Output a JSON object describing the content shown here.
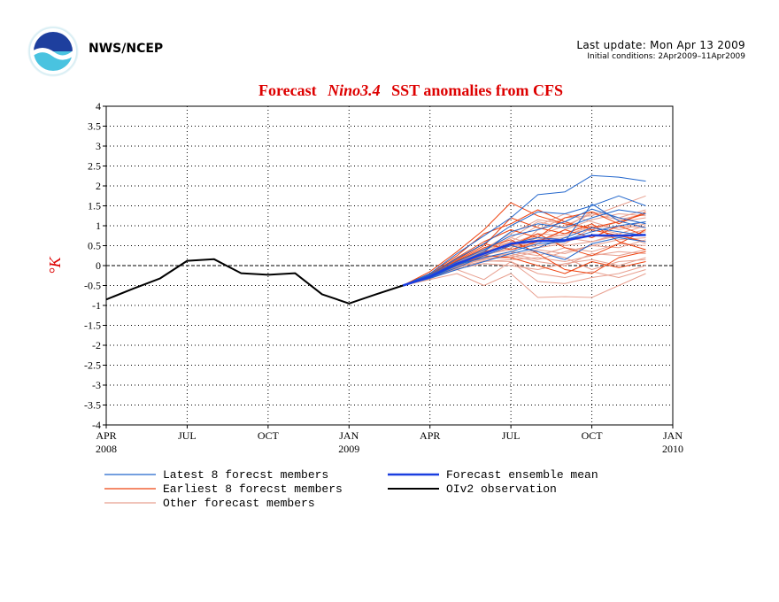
{
  "header": {
    "org": "NWS/NCEP",
    "last_update": "Last update: Mon Apr 13 2009",
    "initial_conditions": "Initial conditions: 2Apr2009–11Apr2009"
  },
  "colors": {
    "title": "#dd0000",
    "latest": "#2266cc",
    "earliest": "#ee4411",
    "other": "#e8a090",
    "mean": "#1a3ee0",
    "observation": "#000000"
  },
  "chart_data": {
    "type": "line",
    "title_prefix": "Forecast",
    "title_italic": "Nino3.4",
    "title_suffix": "SST anomalies from CFS",
    "ylabel": "°K",
    "ylim": [
      -4,
      4
    ],
    "yticks": [
      4,
      3.5,
      3,
      2.5,
      2,
      1.5,
      1,
      0.5,
      0,
      -0.5,
      -1,
      -1.5,
      -2,
      -2.5,
      -3,
      -3.5,
      -4
    ],
    "ytick_labels": [
      "4",
      "3.5",
      "3",
      "2.5",
      "2",
      "1.5",
      "1",
      "0.5",
      "0",
      "-0.5",
      "-1",
      "-1.5",
      "-2",
      "-2.5",
      "-3",
      "-3.5",
      "-4"
    ],
    "xlim": [
      "2008-04",
      "2010-01"
    ],
    "xticks": [
      {
        "x": "2008-04",
        "label": "APR",
        "year": "2008"
      },
      {
        "x": "2008-07",
        "label": "JUL",
        "year": ""
      },
      {
        "x": "2008-10",
        "label": "OCT",
        "year": ""
      },
      {
        "x": "2009-01",
        "label": "JAN",
        "year": "2009"
      },
      {
        "x": "2009-04",
        "label": "APR",
        "year": ""
      },
      {
        "x": "2009-07",
        "label": "JUL",
        "year": ""
      },
      {
        "x": "2009-10",
        "label": "OCT",
        "year": ""
      },
      {
        "x": "2010-01",
        "label": "JAN",
        "year": "2010"
      }
    ],
    "grid": true,
    "legend": [
      {
        "label": "Latest 8 forecst members",
        "key": "latest"
      },
      {
        "label": "Forecast ensemble mean",
        "key": "mean"
      },
      {
        "label": "Earliest 8 forecst members",
        "key": "earliest"
      },
      {
        "label": "OIv2 observation",
        "key": "observation"
      },
      {
        "label": "Other forecast members",
        "key": "other"
      }
    ],
    "observation": {
      "name": "OIv2 observation",
      "x": [
        "2008-04",
        "2008-05",
        "2008-06",
        "2008-07",
        "2008-08",
        "2008-09",
        "2008-10",
        "2008-11",
        "2008-12",
        "2009-01",
        "2009-02",
        "2009-03"
      ],
      "y": [
        -0.85,
        -0.58,
        -0.32,
        0.12,
        0.16,
        -0.19,
        -0.23,
        -0.19,
        -0.72,
        -0.95,
        -0.72,
        -0.5
      ]
    },
    "forecast_x": [
      "2009-03",
      "2009-04",
      "2009-05",
      "2009-06",
      "2009-07",
      "2009-08",
      "2009-09",
      "2009-10",
      "2009-11",
      "2009-12"
    ],
    "ensemble_mean": {
      "name": "Forecast ensemble mean",
      "y": [
        -0.5,
        -0.28,
        0.05,
        0.3,
        0.55,
        0.62,
        0.63,
        0.76,
        0.75,
        0.77
      ]
    },
    "latest_members": [
      [
        -0.5,
        -0.2,
        0.3,
        0.75,
        1.2,
        1.78,
        1.85,
        2.26,
        2.22,
        2.12
      ],
      [
        -0.5,
        -0.23,
        0.18,
        0.55,
        1.0,
        1.35,
        1.3,
        1.5,
        1.75,
        1.5
      ],
      [
        -0.5,
        -0.25,
        0.1,
        0.4,
        0.75,
        0.9,
        1.1,
        1.42,
        1.2,
        1.05
      ],
      [
        -0.5,
        -0.3,
        0.0,
        0.3,
        0.55,
        0.7,
        0.65,
        0.85,
        1.0,
        1.1
      ],
      [
        -0.5,
        -0.28,
        0.02,
        0.2,
        0.35,
        0.55,
        0.6,
        1.55,
        1.12,
        0.95
      ],
      [
        -0.5,
        -0.3,
        -0.05,
        0.25,
        0.5,
        0.35,
        0.15,
        0.55,
        0.7,
        0.6
      ],
      [
        -0.5,
        -0.32,
        -0.1,
        0.1,
        0.3,
        0.45,
        0.7,
        0.95,
        0.85,
        0.75
      ],
      [
        -0.5,
        -0.27,
        0.05,
        0.35,
        0.85,
        1.05,
        0.95,
        1.2,
        1.4,
        1.3
      ]
    ],
    "earliest_members": [
      [
        -0.5,
        -0.15,
        0.35,
        0.9,
        1.58,
        1.25,
        1.05,
        0.95,
        1.1,
        1.3
      ],
      [
        -0.5,
        -0.2,
        0.25,
        0.8,
        1.05,
        1.4,
        1.1,
        0.9,
        0.75,
        0.6
      ],
      [
        -0.5,
        -0.22,
        0.2,
        0.6,
        0.9,
        0.7,
        1.2,
        1.35,
        1.05,
        1.35
      ],
      [
        -0.5,
        -0.25,
        0.1,
        0.45,
        0.65,
        0.3,
        -0.1,
        -0.2,
        0.2,
        0.35
      ],
      [
        -0.5,
        -0.28,
        0.05,
        0.35,
        0.5,
        0.8,
        0.45,
        0.25,
        0.55,
        0.9
      ],
      [
        -0.5,
        -0.3,
        0.0,
        0.25,
        0.2,
        0.0,
        -0.2,
        0.1,
        -0.05,
        0.1
      ],
      [
        -0.5,
        -0.26,
        0.12,
        0.5,
        1.2,
        0.95,
        0.8,
        1.05,
        0.6,
        0.4
      ],
      [
        -0.5,
        -0.24,
        0.15,
        0.55,
        0.4,
        0.6,
        0.9,
        0.7,
        1.0,
        0.75
      ]
    ],
    "other_members": [
      [
        -0.5,
        -0.35,
        -0.2,
        -0.5,
        -0.2,
        -0.8,
        -0.78,
        -0.8,
        -0.5,
        -0.2
      ],
      [
        -0.5,
        -0.32,
        -0.1,
        -0.35,
        0.1,
        -0.4,
        -0.45,
        -0.3,
        -0.2,
        0.0
      ],
      [
        -0.5,
        -0.3,
        -0.05,
        0.2,
        0.3,
        0.9,
        1.2,
        1.25,
        1.5,
        1.75
      ],
      [
        -0.5,
        -0.28,
        0.05,
        0.3,
        0.7,
        1.1,
        0.95,
        1.35,
        1.2,
        1.4
      ],
      [
        -0.5,
        -0.27,
        0.1,
        0.35,
        0.5,
        0.6,
        0.8,
        0.9,
        1.1,
        1.2
      ],
      [
        -0.5,
        -0.3,
        0.0,
        0.15,
        0.25,
        0.4,
        0.3,
        0.5,
        0.45,
        0.65
      ],
      [
        -0.5,
        -0.31,
        -0.02,
        0.1,
        0.15,
        0.2,
        0.1,
        0.25,
        0.35,
        0.3
      ],
      [
        -0.5,
        -0.29,
        0.03,
        0.25,
        0.45,
        0.7,
        0.5,
        0.6,
        0.8,
        1.0
      ],
      [
        -0.5,
        -0.26,
        0.08,
        0.4,
        0.6,
        1.0,
        1.3,
        1.1,
        0.9,
        1.05
      ],
      [
        -0.5,
        -0.33,
        -0.08,
        0.05,
        0.0,
        -0.1,
        0.05,
        0.15,
        0.0,
        0.2
      ],
      [
        -0.5,
        -0.3,
        -0.03,
        0.2,
        0.35,
        0.25,
        0.45,
        0.35,
        0.55,
        0.5
      ],
      [
        -0.5,
        -0.28,
        0.06,
        0.3,
        0.55,
        0.8,
        0.75,
        1.0,
        0.95,
        1.1
      ],
      [
        -0.5,
        -0.27,
        0.09,
        0.38,
        0.7,
        0.5,
        0.6,
        0.75,
        0.7,
        0.85
      ],
      [
        -0.5,
        -0.31,
        -0.04,
        0.18,
        0.2,
        0.35,
        0.2,
        -0.1,
        0.1,
        0.15
      ],
      [
        -0.5,
        -0.29,
        0.02,
        0.28,
        0.4,
        0.55,
        0.9,
        1.15,
        1.3,
        1.25
      ],
      [
        -0.5,
        -0.3,
        0.01,
        0.22,
        0.3,
        0.15,
        0.35,
        0.5,
        0.65,
        0.7
      ],
      [
        -0.5,
        -0.26,
        0.1,
        0.42,
        0.8,
        1.15,
        1.05,
        0.85,
        1.0,
        0.95
      ],
      [
        -0.5,
        -0.32,
        -0.06,
        0.12,
        0.1,
        -0.2,
        -0.3,
        -0.15,
        -0.3,
        -0.1
      ],
      [
        -0.5,
        -0.28,
        0.04,
        0.32,
        0.6,
        0.45,
        0.55,
        0.95,
        0.8,
        0.55
      ],
      [
        -0.5,
        -0.29,
        0.0,
        0.26,
        0.45,
        0.65,
        0.7,
        0.6,
        0.75,
        0.9
      ],
      [
        -0.5,
        -0.27,
        0.07,
        0.34,
        0.5,
        0.75,
        1.0,
        1.3,
        1.15,
        1.3
      ],
      [
        -0.5,
        -0.31,
        -0.02,
        0.16,
        0.25,
        0.1,
        0.0,
        0.3,
        0.25,
        0.4
      ]
    ]
  }
}
